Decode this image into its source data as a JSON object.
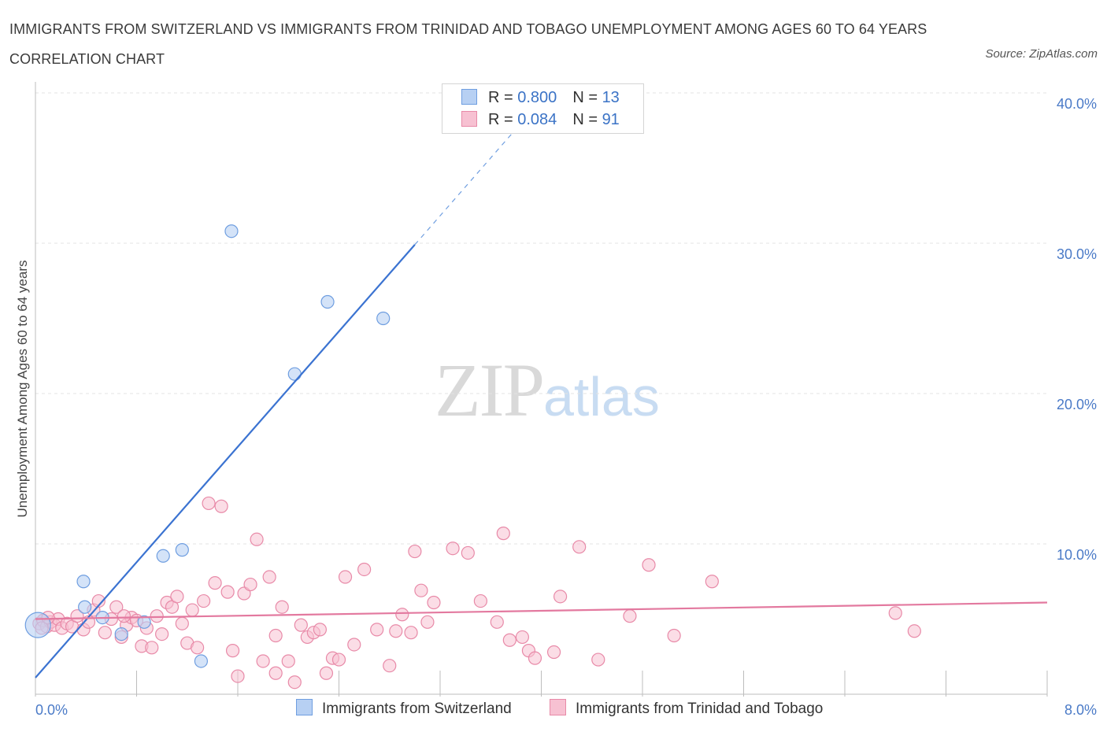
{
  "title": "IMMIGRANTS FROM SWITZERLAND VS IMMIGRANTS FROM TRINIDAD AND TOBAGO UNEMPLOYMENT AMONG AGES 60 TO 64 YEARS CORRELATION CHART",
  "source": "Source: ZipAtlas.com",
  "watermark": {
    "zip": "ZIP",
    "atlas": "atlas"
  },
  "legend": {
    "rows": [
      {
        "r_label": "R = ",
        "r_value": "0.800",
        "n_label": "N = ",
        "n_value": "13"
      },
      {
        "r_label": "R = ",
        "r_value": "0.084",
        "n_label": "N = ",
        "n_value": "91"
      }
    ]
  },
  "colors": {
    "blue_fill": "#b7d0f3",
    "blue_stroke": "#6f9ee0",
    "blue_line": "#3b73d1",
    "pink_fill": "#f7c1d2",
    "pink_stroke": "#e88aa8",
    "pink_line": "#e3799f",
    "grid": "#e3e3e3",
    "axis": "#bdbdbd"
  },
  "chart_data": {
    "type": "scatter",
    "title": "IMMIGRANTS FROM SWITZERLAND VS IMMIGRANTS FROM TRINIDAD AND TOBAGO UNEMPLOYMENT AMONG AGES 60 TO 64 YEARS CORRELATION CHART",
    "xlabel": "",
    "ylabel": "Unemployment Among Ages 60 to 64 years",
    "xlim": [
      0,
      8
    ],
    "ylim": [
      0,
      40
    ],
    "x_tick_labels": [
      "0.0%",
      "8.0%"
    ],
    "y_tick_labels": [
      {
        "value": 10,
        "label": "10.0%"
      },
      {
        "value": 20,
        "label": "20.0%"
      },
      {
        "value": 30,
        "label": "30.0%"
      },
      {
        "value": 40,
        "label": "40.0%"
      }
    ],
    "grid": true,
    "legend_position": "bottom",
    "series": [
      {
        "name": "Immigrants from Switzerland",
        "color": "#6f9ee0",
        "points": [
          [
            0.02,
            4.6
          ],
          [
            0.38,
            7.5
          ],
          [
            0.39,
            5.8
          ],
          [
            0.53,
            5.1
          ],
          [
            0.68,
            4.0
          ],
          [
            0.86,
            4.8
          ],
          [
            1.01,
            9.2
          ],
          [
            1.16,
            9.6
          ],
          [
            1.31,
            2.2
          ],
          [
            1.55,
            30.8
          ],
          [
            2.05,
            21.3
          ],
          [
            2.31,
            26.1
          ],
          [
            2.75,
            25.0
          ]
        ],
        "trend": {
          "x0": 0.0,
          "y0": 1.1,
          "x1": 3.0,
          "y1": 29.9,
          "dash_x1": 3.8,
          "dash_y1": 37.6
        }
      },
      {
        "name": "Immigrants from Trinidad and Tobago",
        "color": "#e88aa8",
        "points": [
          [
            0.03,
            4.7
          ],
          [
            0.06,
            4.9
          ],
          [
            0.09,
            4.5
          ],
          [
            0.12,
            4.8
          ],
          [
            0.15,
            4.6
          ],
          [
            0.18,
            5.0
          ],
          [
            0.21,
            4.4
          ],
          [
            0.25,
            4.7
          ],
          [
            0.29,
            4.5
          ],
          [
            0.33,
            5.2
          ],
          [
            0.38,
            4.3
          ],
          [
            0.42,
            4.8
          ],
          [
            0.46,
            5.6
          ],
          [
            0.5,
            6.2
          ],
          [
            0.55,
            4.1
          ],
          [
            0.6,
            5.0
          ],
          [
            0.64,
            5.8
          ],
          [
            0.68,
            3.8
          ],
          [
            0.72,
            4.6
          ],
          [
            0.76,
            5.1
          ],
          [
            0.8,
            4.9
          ],
          [
            0.84,
            3.2
          ],
          [
            0.88,
            4.4
          ],
          [
            0.92,
            3.1
          ],
          [
            0.96,
            5.2
          ],
          [
            1.0,
            4.0
          ],
          [
            1.04,
            6.1
          ],
          [
            1.08,
            5.8
          ],
          [
            1.12,
            6.5
          ],
          [
            1.16,
            4.7
          ],
          [
            1.2,
            3.4
          ],
          [
            1.24,
            5.6
          ],
          [
            1.28,
            3.1
          ],
          [
            1.33,
            6.2
          ],
          [
            1.37,
            12.7
          ],
          [
            1.42,
            7.4
          ],
          [
            1.47,
            12.5
          ],
          [
            1.52,
            6.8
          ],
          [
            1.56,
            2.9
          ],
          [
            1.6,
            1.2
          ],
          [
            1.65,
            6.7
          ],
          [
            1.7,
            7.3
          ],
          [
            1.75,
            10.3
          ],
          [
            1.8,
            2.2
          ],
          [
            1.85,
            7.8
          ],
          [
            1.9,
            1.4
          ],
          [
            1.95,
            5.8
          ],
          [
            2.0,
            2.2
          ],
          [
            2.05,
            0.8
          ],
          [
            2.1,
            4.6
          ],
          [
            2.15,
            3.8
          ],
          [
            2.2,
            4.1
          ],
          [
            2.25,
            4.3
          ],
          [
            2.3,
            1.4
          ],
          [
            2.35,
            2.4
          ],
          [
            2.4,
            2.3
          ],
          [
            2.45,
            7.8
          ],
          [
            2.52,
            3.3
          ],
          [
            2.6,
            8.3
          ],
          [
            2.7,
            4.3
          ],
          [
            2.8,
            1.9
          ],
          [
            2.85,
            4.2
          ],
          [
            2.9,
            5.3
          ],
          [
            2.97,
            4.1
          ],
          [
            3.0,
            9.5
          ],
          [
            3.05,
            6.9
          ],
          [
            3.1,
            4.8
          ],
          [
            3.15,
            6.1
          ],
          [
            3.3,
            9.7
          ],
          [
            3.42,
            9.4
          ],
          [
            3.52,
            6.2
          ],
          [
            3.65,
            4.8
          ],
          [
            3.7,
            10.7
          ],
          [
            3.75,
            3.6
          ],
          [
            3.85,
            3.8
          ],
          [
            3.9,
            2.9
          ],
          [
            3.95,
            2.4
          ],
          [
            4.1,
            2.8
          ],
          [
            4.15,
            6.5
          ],
          [
            4.3,
            9.8
          ],
          [
            4.45,
            2.3
          ],
          [
            4.7,
            5.2
          ],
          [
            4.85,
            8.6
          ],
          [
            5.05,
            3.9
          ],
          [
            5.35,
            7.5
          ],
          [
            6.8,
            5.4
          ],
          [
            6.95,
            4.2
          ],
          [
            0.05,
            4.4
          ],
          [
            0.1,
            5.1
          ],
          [
            0.7,
            5.2
          ],
          [
            1.9,
            3.9
          ]
        ],
        "trend": {
          "x0": 0.0,
          "y0": 5.0,
          "x1": 8.0,
          "y1": 6.1
        }
      }
    ]
  }
}
